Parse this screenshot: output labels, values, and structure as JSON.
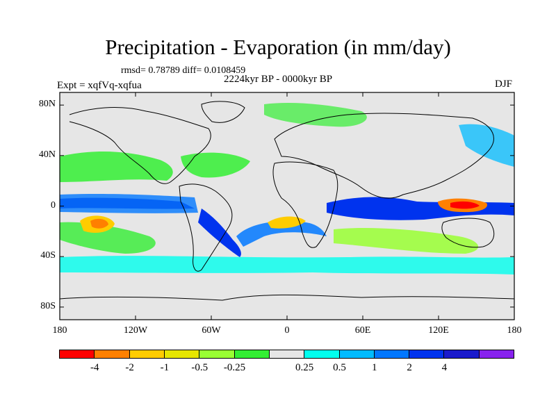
{
  "title": "Precipitation - Evaporation (in mm/day)",
  "stats": "rmsd= 0.78789 diff= 0.0108459",
  "period": "2224kyr BP - 0000kyr BP",
  "experiment": "Expt = xqfVq-xqfua",
  "season": "DJF",
  "map": {
    "lon_range": [
      -180,
      180
    ],
    "lat_range": [
      -90,
      90
    ],
    "ocean_color": "#e6e6e6",
    "lat_ticks": [
      {
        "value": 80,
        "label": "80N"
      },
      {
        "value": 40,
        "label": "40N"
      },
      {
        "value": 0,
        "label": "0"
      },
      {
        "value": -40,
        "label": "40S"
      },
      {
        "value": -80,
        "label": "80S"
      }
    ],
    "lon_ticks": [
      {
        "value": -180,
        "label": "180"
      },
      {
        "value": -120,
        "label": "120W"
      },
      {
        "value": -60,
        "label": "60W"
      },
      {
        "value": 0,
        "label": "0"
      },
      {
        "value": 60,
        "label": "60E"
      },
      {
        "value": 120,
        "label": "120E"
      },
      {
        "value": 180,
        "label": "180"
      }
    ]
  },
  "colorbar": {
    "colors": [
      "#ff0000",
      "#ff8000",
      "#ffcc00",
      "#e6e600",
      "#99ff33",
      "#33ee33",
      "#e6e6e6",
      "#00ffee",
      "#00bbff",
      "#0077ff",
      "#0033ee",
      "#1a1acc",
      "#8822ee"
    ],
    "labels": [
      "-4",
      "-2",
      "-1",
      "-0.5",
      "-0.25",
      "0.25",
      "0.5",
      "1",
      "2",
      "4"
    ]
  }
}
